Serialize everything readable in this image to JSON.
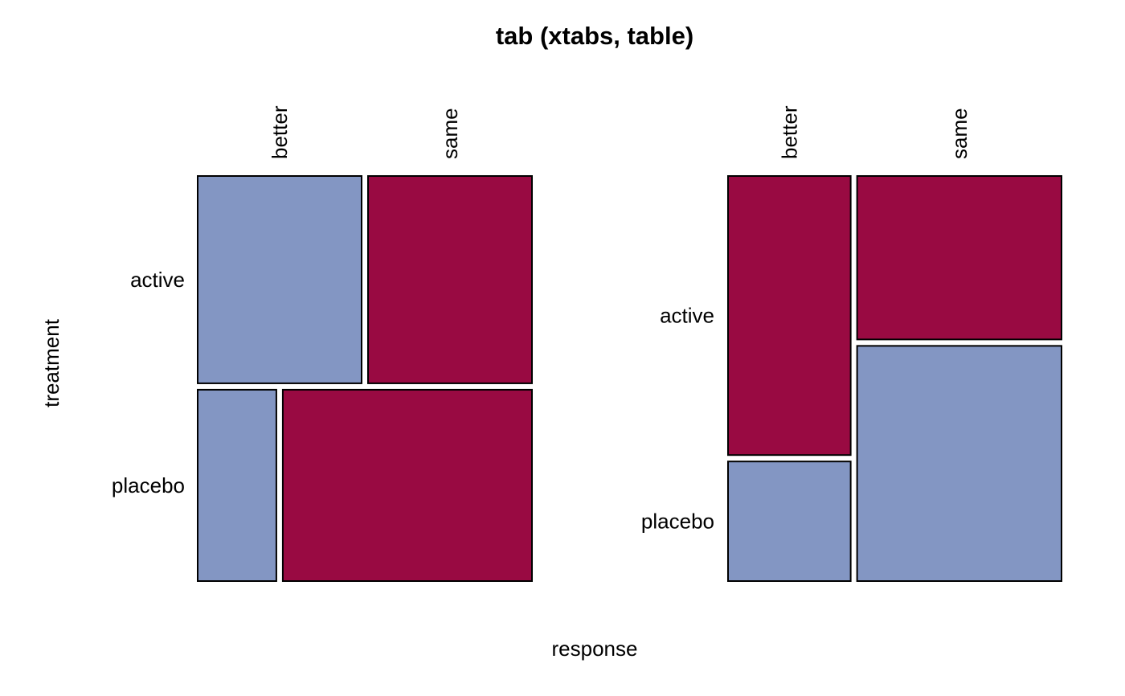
{
  "chart_data": {
    "type": "mosaic",
    "title": "tab (xtabs, table)",
    "xlabel": "response",
    "ylabel": "treatment",
    "row_variable": "treatment",
    "column_variable": "response",
    "rows": [
      "active",
      "placebo"
    ],
    "columns": [
      "better",
      "same"
    ],
    "colors": {
      "positive": "#8396c3",
      "negative": "#990a42",
      "border": "#000000"
    },
    "panels": [
      {
        "id": "left",
        "layout": "rows-then-columns",
        "group_shares": [
          0.52,
          0.48
        ],
        "cells": [
          {
            "row": "active",
            "column": "better",
            "share": 0.5,
            "sign": "positive"
          },
          {
            "row": "active",
            "column": "same",
            "share": 0.5,
            "sign": "negative"
          },
          {
            "row": "placebo",
            "column": "better",
            "share": 0.24,
            "sign": "positive"
          },
          {
            "row": "placebo",
            "column": "same",
            "share": 0.76,
            "sign": "negative"
          }
        ]
      },
      {
        "id": "right",
        "layout": "columns-then-rows",
        "group_shares": [
          0.375,
          0.625
        ],
        "cells": [
          {
            "column": "better",
            "row": "active",
            "share": 0.7,
            "sign": "negative"
          },
          {
            "column": "better",
            "row": "placebo",
            "share": 0.3,
            "sign": "positive"
          },
          {
            "column": "same",
            "row": "active",
            "share": 0.41,
            "sign": "negative"
          },
          {
            "column": "same",
            "row": "placebo",
            "share": 0.59,
            "sign": "positive"
          }
        ]
      }
    ]
  }
}
